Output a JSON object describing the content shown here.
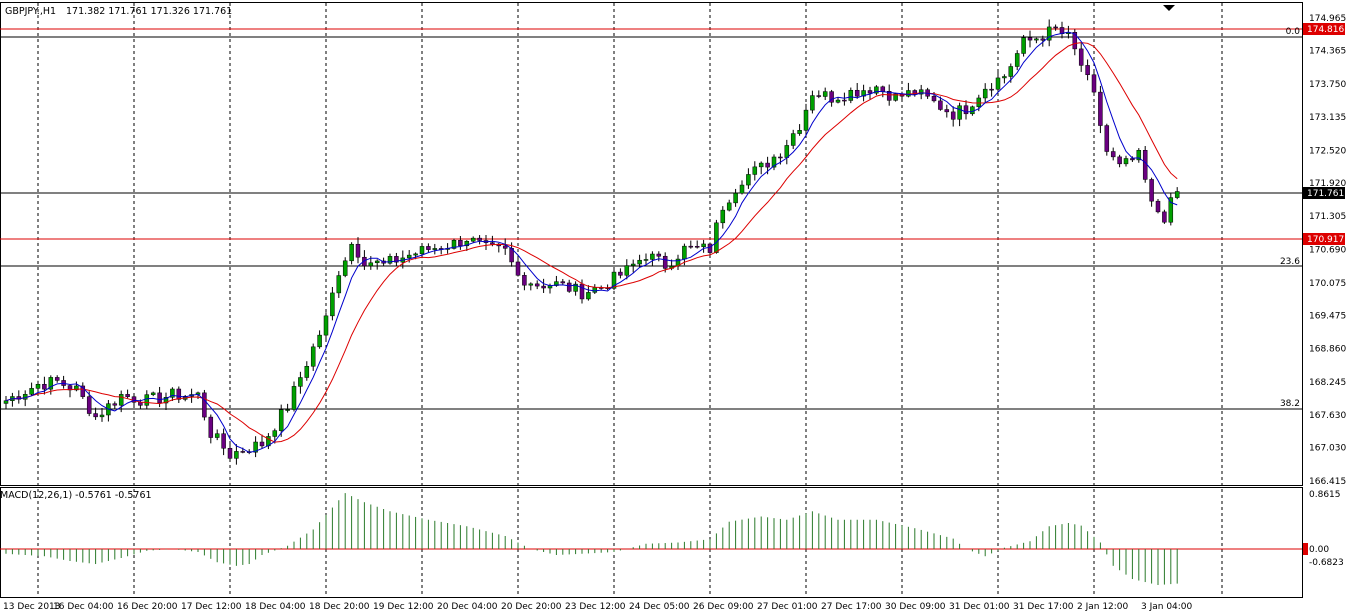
{
  "header": {
    "symbol": "GBPJPY.,H1",
    "ohlc": "171.382 171.761 171.326 171.761"
  },
  "macd": {
    "label": "MACD(12,26,1) -0.5761 -0.5761",
    "ticks": [
      "0.8615",
      "0.00",
      "-0.6823"
    ],
    "ylim": [
      -0.6823,
      0.8615
    ]
  },
  "levels": {
    "resistance_high": "174.816",
    "support": "170.917",
    "current": "171.761"
  },
  "fibonacci": [
    {
      "label": "0.0",
      "value": 174.75
    },
    {
      "label": "23.6",
      "value": 170.45
    },
    {
      "label": "38.2",
      "value": 167.75
    }
  ],
  "colors": {
    "up_candle": "#00a000",
    "down_candle": "#6a0080",
    "fast_ma": "#0000cc",
    "slow_ma": "#dd0000",
    "macd_hist": "#2a7a2a",
    "level_red": "#dd0000",
    "tag_red_bg": "#dd0000",
    "tag_black_bg": "#000000"
  },
  "chart_data": {
    "type": "candlestick",
    "ylim": [
      166.415,
      174.965
    ],
    "y_ticks": [
      "174.965",
      "174.365",
      "173.750",
      "173.135",
      "172.520",
      "171.920",
      "171.305",
      "170.690",
      "170.075",
      "169.475",
      "168.860",
      "168.245",
      "167.630",
      "167.030",
      "166.415"
    ],
    "x_ticks": [
      "13 Dec 2013",
      "16 Dec 04:00",
      "16 Dec 20:00",
      "17 Dec 12:00",
      "18 Dec 04:00",
      "18 Dec 20:00",
      "19 Dec 12:00",
      "20 Dec 04:00",
      "20 Dec 20:00",
      "23 Dec 12:00",
      "24 Dec 05:00",
      "26 Dec 09:00",
      "27 Dec 01:00",
      "27 Dec 17:00",
      "30 Dec 09:00",
      "31 Dec 01:00",
      "31 Dec 17:00",
      "2 Jan 12:00",
      "3 Jan 04:00"
    ],
    "close_path": [
      [
        0,
        167.9
      ],
      [
        5,
        168.2
      ],
      [
        8,
        168.25
      ],
      [
        11,
        168.1
      ],
      [
        14,
        167.6
      ],
      [
        18,
        168.0
      ],
      [
        22,
        167.9
      ],
      [
        26,
        168.0
      ],
      [
        30,
        168.0
      ],
      [
        32,
        167.3
      ],
      [
        35,
        166.9
      ],
      [
        37,
        167.0
      ],
      [
        40,
        167.1
      ],
      [
        44,
        167.8
      ],
      [
        47,
        168.6
      ],
      [
        50,
        169.4
      ],
      [
        52,
        170.3
      ],
      [
        54,
        170.8
      ],
      [
        56,
        170.5
      ],
      [
        59,
        170.4
      ],
      [
        62,
        170.55
      ],
      [
        66,
        170.7
      ],
      [
        70,
        170.8
      ],
      [
        72,
        170.9
      ],
      [
        75,
        170.7
      ],
      [
        78,
        170.65
      ],
      [
        80,
        170.2
      ],
      [
        83,
        170.05
      ],
      [
        86,
        170.05
      ],
      [
        90,
        169.9
      ],
      [
        93,
        170.0
      ],
      [
        97,
        170.3
      ],
      [
        100,
        170.6
      ],
      [
        103,
        170.4
      ],
      [
        106,
        170.7
      ],
      [
        110,
        170.7
      ],
      [
        112,
        171.5
      ],
      [
        115,
        172.0
      ],
      [
        118,
        172.2
      ],
      [
        121,
        172.5
      ],
      [
        124,
        173.0
      ],
      [
        126,
        173.6
      ],
      [
        129,
        173.5
      ],
      [
        132,
        173.6
      ],
      [
        136,
        173.7
      ],
      [
        139,
        173.5
      ],
      [
        142,
        173.6
      ],
      [
        145,
        173.4
      ],
      [
        148,
        173.2
      ],
      [
        150,
        173.3
      ],
      [
        153,
        173.7
      ],
      [
        156,
        173.9
      ],
      [
        159,
        174.5
      ],
      [
        161,
        174.6
      ],
      [
        164,
        174.75
      ],
      [
        166,
        174.6
      ],
      [
        168,
        174.1
      ],
      [
        170,
        173.5
      ],
      [
        172,
        172.5
      ],
      [
        174,
        172.2
      ],
      [
        177,
        172.4
      ],
      [
        179,
        171.5
      ],
      [
        181,
        171.3
      ],
      [
        183,
        171.761
      ]
    ],
    "macd_path": [
      [
        0,
        -0.08
      ],
      [
        6,
        -0.12
      ],
      [
        10,
        -0.2
      ],
      [
        14,
        -0.25
      ],
      [
        18,
        -0.15
      ],
      [
        22,
        -0.03
      ],
      [
        26,
        0.0
      ],
      [
        30,
        -0.05
      ],
      [
        33,
        -0.22
      ],
      [
        36,
        -0.28
      ],
      [
        38,
        -0.25
      ],
      [
        40,
        -0.1
      ],
      [
        44,
        0.05
      ],
      [
        48,
        0.3
      ],
      [
        52,
        0.75
      ],
      [
        53,
        0.86
      ],
      [
        56,
        0.72
      ],
      [
        60,
        0.58
      ],
      [
        66,
        0.45
      ],
      [
        72,
        0.35
      ],
      [
        78,
        0.2
      ],
      [
        82,
        0.0
      ],
      [
        86,
        -0.1
      ],
      [
        90,
        -0.08
      ],
      [
        95,
        -0.05
      ],
      [
        100,
        0.08
      ],
      [
        105,
        0.1
      ],
      [
        110,
        0.15
      ],
      [
        113,
        0.42
      ],
      [
        118,
        0.5
      ],
      [
        122,
        0.45
      ],
      [
        126,
        0.58
      ],
      [
        130,
        0.45
      ],
      [
        136,
        0.45
      ],
      [
        142,
        0.32
      ],
      [
        148,
        0.16
      ],
      [
        150,
        0.0
      ],
      [
        153,
        -0.12
      ],
      [
        156,
        0.02
      ],
      [
        160,
        0.12
      ],
      [
        163,
        0.35
      ],
      [
        166,
        0.4
      ],
      [
        168,
        0.36
      ],
      [
        171,
        0.1
      ],
      [
        173,
        -0.28
      ],
      [
        176,
        -0.5
      ],
      [
        180,
        -0.6
      ],
      [
        183,
        -0.5761
      ]
    ]
  }
}
